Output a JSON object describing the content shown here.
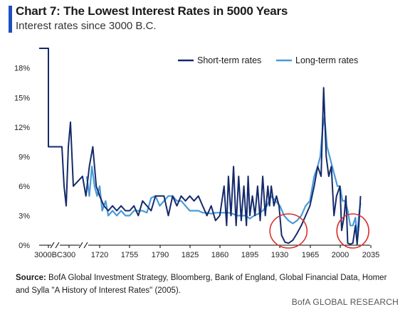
{
  "header": {
    "title": "Chart 7: The Lowest Interest Rates in 5000 Years",
    "subtitle": "Interest rates since 3000 B.C."
  },
  "footer": {
    "source_label": "Source:",
    "source_text": "BofA Global Investment Strategy, Bloomberg, Bank of England, Global Financial Data, Homer and Sylla \"A History of Interest Rates\" (2005).",
    "brand": "BofA GLOBAL RESEARCH"
  },
  "colors": {
    "accent": "#1f4fbf",
    "short_term": "#152a6b",
    "long_term": "#4a9ad8",
    "highlight_circle": "#d9302b",
    "axis": "#000000"
  },
  "chart_data": {
    "type": "line",
    "title": "",
    "xlabel": "",
    "ylabel": "",
    "ylim": [
      0,
      20
    ],
    "y_ticks": [
      0,
      3,
      6,
      9,
      12,
      15,
      18
    ],
    "y_tick_labels": [
      "0%",
      "3%",
      "6%",
      "9%",
      "12%",
      "15%",
      "18%"
    ],
    "x_ticks": [
      "3000BC",
      "300",
      "1720",
      "1755",
      "1790",
      "1825",
      "1860",
      "1895",
      "1930",
      "1965",
      "2000",
      "2035"
    ],
    "axis_breaks": [
      "3000BC-300",
      "300-1720"
    ],
    "grid": false,
    "legend_position": "top-right",
    "annotations": [
      {
        "type": "circle",
        "label": "",
        "x_range": [
          1930,
          1950
        ]
      },
      {
        "type": "circle",
        "label": "",
        "x_range": [
          2008,
          2022
        ]
      }
    ],
    "series": [
      {
        "name": "Short-term rates",
        "points": [
          [
            "3000BC",
            20
          ],
          [
            "3000BC+",
            20
          ],
          [
            "pre300",
            10
          ],
          [
            "300",
            10
          ],
          [
            "300+",
            6
          ],
          [
            "300++",
            4
          ],
          [
            "300+++",
            10
          ],
          [
            "300++++",
            12.5
          ],
          [
            "300+++++",
            6
          ],
          [
            1700,
            7
          ],
          [
            1704,
            5
          ],
          [
            1708,
            8
          ],
          [
            1712,
            10
          ],
          [
            1716,
            6
          ],
          [
            1720,
            5
          ],
          [
            1725,
            4
          ],
          [
            1730,
            3.5
          ],
          [
            1735,
            4
          ],
          [
            1740,
            3.5
          ],
          [
            1745,
            4
          ],
          [
            1750,
            3.5
          ],
          [
            1755,
            3.5
          ],
          [
            1760,
            4
          ],
          [
            1765,
            3
          ],
          [
            1770,
            4.5
          ],
          [
            1775,
            4
          ],
          [
            1780,
            3.5
          ],
          [
            1785,
            5
          ],
          [
            1790,
            5
          ],
          [
            1795,
            5
          ],
          [
            1800,
            3
          ],
          [
            1805,
            5
          ],
          [
            1810,
            4
          ],
          [
            1815,
            5
          ],
          [
            1820,
            4.5
          ],
          [
            1825,
            5
          ],
          [
            1830,
            4.5
          ],
          [
            1835,
            5
          ],
          [
            1840,
            4
          ],
          [
            1845,
            3
          ],
          [
            1850,
            4
          ],
          [
            1855,
            2.5
          ],
          [
            1860,
            3
          ],
          [
            1865,
            6
          ],
          [
            1868,
            2
          ],
          [
            1870,
            7
          ],
          [
            1873,
            3
          ],
          [
            1876,
            8
          ],
          [
            1879,
            2
          ],
          [
            1882,
            7
          ],
          [
            1885,
            2.5
          ],
          [
            1888,
            6
          ],
          [
            1891,
            2
          ],
          [
            1893,
            7
          ],
          [
            1895,
            3
          ],
          [
            1898,
            5
          ],
          [
            1901,
            3
          ],
          [
            1904,
            6
          ],
          [
            1907,
            2.5
          ],
          [
            1910,
            7
          ],
          [
            1913,
            3
          ],
          [
            1916,
            6
          ],
          [
            1918,
            4
          ],
          [
            1920,
            6
          ],
          [
            1923,
            4
          ],
          [
            1926,
            5
          ],
          [
            1929,
            4
          ],
          [
            1932,
            1
          ],
          [
            1936,
            0.3
          ],
          [
            1940,
            0.2
          ],
          [
            1945,
            0.5
          ],
          [
            1950,
            1.2
          ],
          [
            1955,
            2
          ],
          [
            1960,
            3
          ],
          [
            1965,
            4
          ],
          [
            1970,
            6
          ],
          [
            1974,
            8
          ],
          [
            1978,
            7
          ],
          [
            1981,
            16
          ],
          [
            1984,
            9
          ],
          [
            1987,
            7
          ],
          [
            1990,
            8
          ],
          [
            1993,
            3
          ],
          [
            1996,
            5
          ],
          [
            2000,
            6
          ],
          [
            2002,
            1.5
          ],
          [
            2005,
            3
          ],
          [
            2007,
            5
          ],
          [
            2009,
            0.2
          ],
          [
            2012,
            0.1
          ],
          [
            2015,
            0.2
          ],
          [
            2018,
            2
          ],
          [
            2020,
            0.1
          ],
          [
            2022,
            2
          ],
          [
            2024,
            5
          ]
        ]
      },
      {
        "name": "Long-term rates",
        "points": [
          [
            1705,
            7
          ],
          [
            1708,
            5
          ],
          [
            1711,
            8
          ],
          [
            1714,
            6
          ],
          [
            1717,
            5
          ],
          [
            1720,
            6
          ],
          [
            1723,
            3.5
          ],
          [
            1727,
            4.5
          ],
          [
            1730,
            3
          ],
          [
            1735,
            3.5
          ],
          [
            1740,
            3
          ],
          [
            1745,
            3.5
          ],
          [
            1750,
            3
          ],
          [
            1755,
            3
          ],
          [
            1760,
            3.5
          ],
          [
            1765,
            3.5
          ],
          [
            1770,
            3.5
          ],
          [
            1775,
            3.3
          ],
          [
            1780,
            4.8
          ],
          [
            1785,
            5
          ],
          [
            1790,
            4
          ],
          [
            1795,
            4.5
          ],
          [
            1800,
            5
          ],
          [
            1805,
            5
          ],
          [
            1810,
            4.5
          ],
          [
            1815,
            4.5
          ],
          [
            1820,
            4
          ],
          [
            1825,
            3.5
          ],
          [
            1830,
            3.5
          ],
          [
            1835,
            3.5
          ],
          [
            1840,
            3.3
          ],
          [
            1845,
            3.3
          ],
          [
            1850,
            3.2
          ],
          [
            1855,
            3.3
          ],
          [
            1860,
            3.3
          ],
          [
            1865,
            3.3
          ],
          [
            1870,
            3.3
          ],
          [
            1875,
            3.2
          ],
          [
            1880,
            3
          ],
          [
            1885,
            3
          ],
          [
            1890,
            3
          ],
          [
            1895,
            2.7
          ],
          [
            1900,
            3
          ],
          [
            1905,
            3.2
          ],
          [
            1910,
            3.5
          ],
          [
            1915,
            4
          ],
          [
            1920,
            5
          ],
          [
            1925,
            4.5
          ],
          [
            1930,
            4
          ],
          [
            1935,
            3
          ],
          [
            1940,
            2.5
          ],
          [
            1945,
            2.2
          ],
          [
            1950,
            2.5
          ],
          [
            1955,
            3
          ],
          [
            1960,
            4
          ],
          [
            1965,
            4.5
          ],
          [
            1970,
            7
          ],
          [
            1974,
            8
          ],
          [
            1977,
            9
          ],
          [
            1980,
            12
          ],
          [
            1982,
            13
          ],
          [
            1985,
            10
          ],
          [
            1988,
            9
          ],
          [
            1991,
            8
          ],
          [
            1994,
            7
          ],
          [
            1997,
            6
          ],
          [
            2000,
            6
          ],
          [
            2003,
            4.5
          ],
          [
            2006,
            4.5
          ],
          [
            2009,
            3.5
          ],
          [
            2012,
            2
          ],
          [
            2015,
            2
          ],
          [
            2018,
            2.8
          ],
          [
            2020,
            0.8
          ],
          [
            2022,
            3
          ],
          [
            2024,
            4.3
          ]
        ]
      }
    ]
  }
}
